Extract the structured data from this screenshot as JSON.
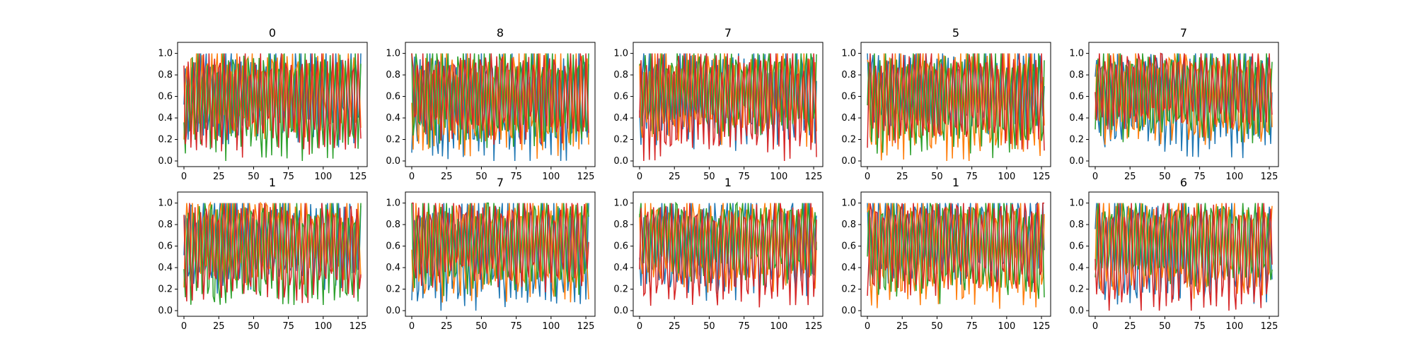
{
  "chart_data": [
    {
      "type": "line",
      "title": "0",
      "ylim": [
        0,
        1.05
      ],
      "x_ticks": [
        0,
        25,
        50,
        75,
        100,
        125
      ],
      "y_ticks": [
        "0.0",
        "0.2",
        "0.4",
        "0.6",
        "0.8",
        "1.0"
      ],
      "series_colors": [
        "#1f77b4",
        "#ff7f0e",
        "#2ca02c",
        "#d62728"
      ]
    },
    {
      "type": "line",
      "title": "8",
      "ylim": [
        0,
        1.05
      ],
      "x_ticks": [
        0,
        25,
        50,
        75,
        100,
        125
      ],
      "y_ticks": [
        "0.0",
        "0.2",
        "0.4",
        "0.6",
        "0.8",
        "1.0"
      ],
      "series_colors": [
        "#1f77b4",
        "#ff7f0e",
        "#2ca02c",
        "#d62728"
      ]
    },
    {
      "type": "line",
      "title": "7",
      "ylim": [
        0,
        1.05
      ],
      "x_ticks": [
        0,
        25,
        50,
        75,
        100,
        125
      ],
      "y_ticks": [
        "0.0",
        "0.2",
        "0.4",
        "0.6",
        "0.8",
        "1.0"
      ],
      "series_colors": [
        "#1f77b4",
        "#ff7f0e",
        "#2ca02c",
        "#d62728"
      ]
    },
    {
      "type": "line",
      "title": "5",
      "ylim": [
        0,
        1.05
      ],
      "x_ticks": [
        0,
        25,
        50,
        75,
        100,
        125
      ],
      "y_ticks": [
        "0.0",
        "0.2",
        "0.4",
        "0.6",
        "0.8",
        "1.0"
      ],
      "series_colors": [
        "#1f77b4",
        "#ff7f0e",
        "#2ca02c",
        "#d62728"
      ]
    },
    {
      "type": "line",
      "title": "7",
      "ylim": [
        0,
        1.05
      ],
      "x_ticks": [
        0,
        25,
        50,
        75,
        100,
        125
      ],
      "y_ticks": [
        "0.0",
        "0.2",
        "0.4",
        "0.6",
        "0.8",
        "1.0"
      ],
      "series_colors": [
        "#1f77b4",
        "#ff7f0e",
        "#2ca02c",
        "#d62728"
      ]
    },
    {
      "type": "line",
      "title": "1",
      "ylim": [
        0,
        1.05
      ],
      "x_ticks": [
        0,
        25,
        50,
        75,
        100,
        125
      ],
      "y_ticks": [
        "0.0",
        "0.2",
        "0.4",
        "0.6",
        "0.8",
        "1.0"
      ],
      "series_colors": [
        "#1f77b4",
        "#ff7f0e",
        "#2ca02c",
        "#d62728"
      ]
    },
    {
      "type": "line",
      "title": "7",
      "ylim": [
        0,
        1.05
      ],
      "x_ticks": [
        0,
        25,
        50,
        75,
        100,
        125
      ],
      "y_ticks": [
        "0.0",
        "0.2",
        "0.4",
        "0.6",
        "0.8",
        "1.0"
      ],
      "series_colors": [
        "#1f77b4",
        "#ff7f0e",
        "#2ca02c",
        "#d62728"
      ]
    },
    {
      "type": "line",
      "title": "1",
      "ylim": [
        0,
        1.05
      ],
      "x_ticks": [
        0,
        25,
        50,
        75,
        100,
        125
      ],
      "y_ticks": [
        "0.0",
        "0.2",
        "0.4",
        "0.6",
        "0.8",
        "1.0"
      ],
      "series_colors": [
        "#1f77b4",
        "#ff7f0e",
        "#2ca02c",
        "#d62728"
      ]
    },
    {
      "type": "line",
      "title": "1",
      "ylim": [
        0,
        1.05
      ],
      "x_ticks": [
        0,
        25,
        50,
        75,
        100,
        125
      ],
      "y_ticks": [
        "0.0",
        "0.2",
        "0.4",
        "0.6",
        "0.8",
        "1.0"
      ],
      "series_colors": [
        "#1f77b4",
        "#ff7f0e",
        "#2ca02c",
        "#d62728"
      ]
    },
    {
      "type": "line",
      "title": "6",
      "ylim": [
        0,
        1.05
      ],
      "x_ticks": [
        0,
        25,
        50,
        75,
        100,
        125
      ],
      "y_ticks": [
        "0.0",
        "0.2",
        "0.4",
        "0.6",
        "0.8",
        "1.0"
      ],
      "series_colors": [
        "#1f77b4",
        "#ff7f0e",
        "#2ca02c",
        "#d62728"
      ]
    }
  ]
}
